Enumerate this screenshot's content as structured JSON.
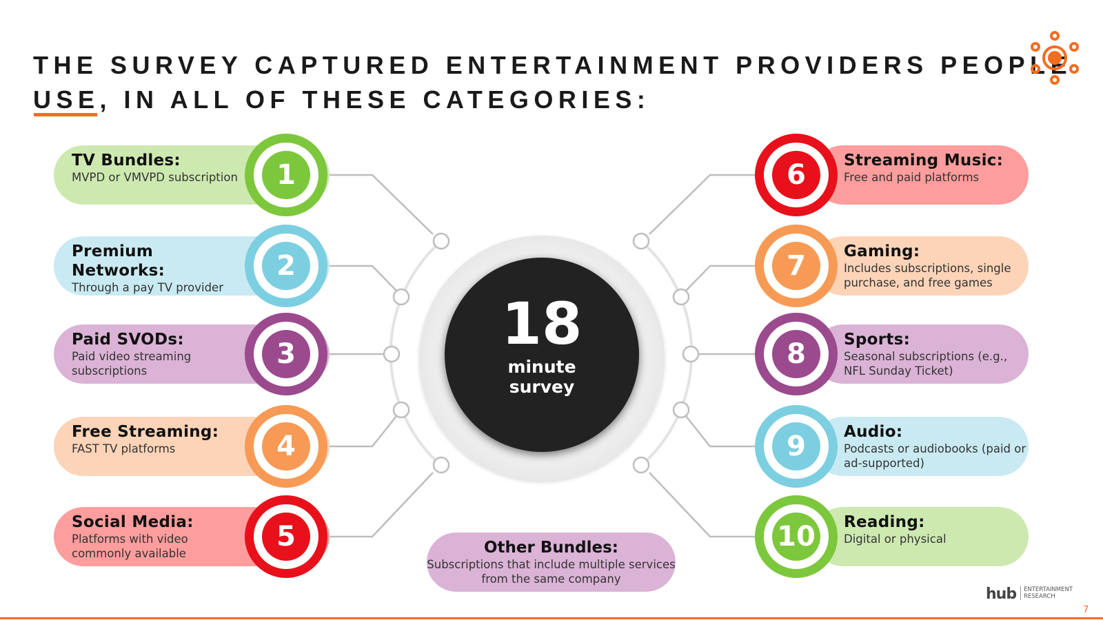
{
  "title": {
    "line1": "THE SURVEY CAPTURED ENTERTAINMENT PROVIDERS PEOPLE",
    "line2": "USE, IN ALL OF THESE CATEGORIES:"
  },
  "center": {
    "number": "18",
    "line1": "minute",
    "line2": "survey"
  },
  "left": [
    {
      "n": "1",
      "title": "TV Bundles:",
      "desc": "MVPD or VMVPD subscription",
      "pill": "#cde9b0",
      "ring": "#7dc73c"
    },
    {
      "n": "2",
      "title": "Premium Networks:",
      "desc": "Through a pay TV provider",
      "pill": "#c9eaf2",
      "ring": "#7ccfe0"
    },
    {
      "n": "3",
      "title": "Paid SVODs:",
      "desc": "Paid video streaming subscriptions",
      "pill": "#dbb3d6",
      "ring": "#9b4a8e"
    },
    {
      "n": "4",
      "title": "Free Streaming:",
      "desc": "FAST TV platforms",
      "pill": "#fdd4b8",
      "ring": "#f79a55"
    },
    {
      "n": "5",
      "title": "Social Media:",
      "desc": "Platforms with video commonly available",
      "pill": "#fd9d9d",
      "ring": "#e8101a"
    }
  ],
  "right": [
    {
      "n": "6",
      "title": "Streaming Music:",
      "desc": "Free and paid platforms",
      "pill": "#fd9d9d",
      "ring": "#e8101a"
    },
    {
      "n": "7",
      "title": "Gaming:",
      "desc": "Includes subscriptions, single purchase, and free games",
      "pill": "#fdd4b8",
      "ring": "#f79a55"
    },
    {
      "n": "8",
      "title": "Sports:",
      "desc": "Seasonal subscriptions (e.g., NFL Sunday Ticket)",
      "pill": "#dbb3d6",
      "ring": "#9b4a8e"
    },
    {
      "n": "9",
      "title": "Audio:",
      "desc": "Podcasts or audiobooks (paid or ad-supported)",
      "pill": "#c9eaf2",
      "ring": "#7ccfe0"
    },
    {
      "n": "10",
      "title": "Reading:",
      "desc": "Digital or physical",
      "pill": "#cde9b0",
      "ring": "#7dc73c"
    }
  ],
  "other": {
    "title": "Other Bundles:",
    "desc": "Subscriptions that include multiple services from the same company"
  },
  "footer": {
    "logo_main": "hub",
    "logo_sub1": "ENTERTAINMENT",
    "logo_sub2": "RESEARCH",
    "page": "7"
  },
  "colors": {
    "accent": "#f26d21",
    "icon": "sun-network-icon"
  }
}
